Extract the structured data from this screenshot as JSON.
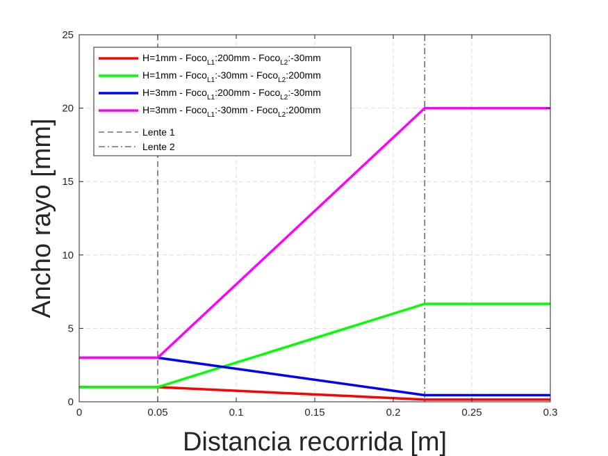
{
  "chart_data": {
    "type": "line",
    "xlabel": "Distancia recorrida [m]",
    "ylabel": "Ancho rayo [mm]",
    "xlim": [
      0,
      0.3
    ],
    "ylim": [
      0,
      25
    ],
    "xticks": [
      0,
      0.05,
      0.1,
      0.15,
      0.2,
      0.25,
      0.3
    ],
    "xtick_labels": [
      "0",
      "0.05",
      "0.1",
      "0.15",
      "0.2",
      "0.25",
      "0.3"
    ],
    "yticks": [
      0,
      5,
      10,
      15,
      20,
      25
    ],
    "ytick_labels": [
      "0",
      "5",
      "10",
      "15",
      "20",
      "25"
    ],
    "grid": true,
    "legend_position": "top-left",
    "series": [
      {
        "legend": {
          "main": "H=1mm - Foco",
          "sub1": "L1",
          "mid": ":200mm - Foco",
          "sub2": "L2",
          "end": ":-30mm"
        },
        "color": "#ff0000",
        "x": [
          0,
          0.05,
          0.22,
          0.3
        ],
        "y": [
          1,
          1,
          0.15,
          0.15
        ]
      },
      {
        "legend": {
          "main": "H=1mm - Foco",
          "sub1": "L1",
          "mid": ":-30mm - Foco",
          "sub2": "L2",
          "end": ":200mm"
        },
        "color": "#00ff00",
        "x": [
          0,
          0.05,
          0.22,
          0.3
        ],
        "y": [
          1,
          1,
          6.67,
          6.67
        ]
      },
      {
        "legend": {
          "main": "H=3mm - Foco",
          "sub1": "L1",
          "mid": ":200mm - Foco",
          "sub2": "L2",
          "end": ":-30mm"
        },
        "color": "#0000ff",
        "x": [
          0,
          0.05,
          0.22,
          0.3
        ],
        "y": [
          3,
          3,
          0.45,
          0.45
        ]
      },
      {
        "legend": {
          "main": "H=3mm - Foco",
          "sub1": "L1",
          "mid": ":-30mm - Foco",
          "sub2": "L2",
          "end": ":200mm"
        },
        "color": "#ff00ff",
        "x": [
          0,
          0.05,
          0.22,
          0.3
        ],
        "y": [
          3,
          3,
          20,
          20
        ]
      }
    ],
    "vlines": [
      {
        "x": 0.05,
        "style": "dashed",
        "label": "Lente 1",
        "color": "#404040"
      },
      {
        "x": 0.22,
        "style": "dashdot",
        "label": "Lente 2",
        "color": "#404040"
      }
    ]
  }
}
